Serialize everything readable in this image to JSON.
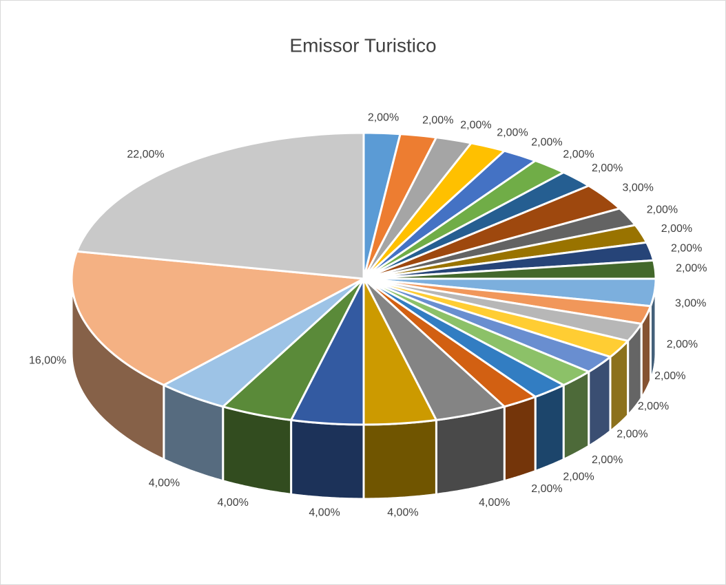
{
  "chart_data": {
    "type": "pie3d",
    "title": "Emissor Turistico",
    "values": [
      2,
      2,
      2,
      2,
      2,
      2,
      2,
      3,
      2,
      2,
      2,
      2,
      3,
      2,
      2,
      2,
      2,
      2,
      2,
      2,
      4,
      4,
      4,
      4,
      4,
      16,
      22
    ],
    "value_labels": [
      "2,00%",
      "2,00%",
      "2,00%",
      "2,00%",
      "2,00%",
      "2,00%",
      "2,00%",
      "3,00%",
      "2,00%",
      "2,00%",
      "2,00%",
      "2,00%",
      "3,00%",
      "2,00%",
      "2,00%",
      "2,00%",
      "2,00%",
      "2,00%",
      "2,00%",
      "2,00%",
      "4,00%",
      "4,00%",
      "4,00%",
      "4,00%",
      "4,00%",
      "16,00%",
      "22,00%"
    ],
    "colors": [
      "#5b9bd5",
      "#ed7d31",
      "#a5a5a5",
      "#ffc000",
      "#4472c4",
      "#70ad47",
      "#255e91",
      "#9e480e",
      "#636363",
      "#997300",
      "#264478",
      "#43682b",
      "#7cafdd",
      "#f1975a",
      "#b7b7b7",
      "#ffcd33",
      "#698ed0",
      "#8cc168",
      "#327dc2",
      "#d26012",
      "#848484",
      "#cc9a00",
      "#335aa1",
      "#5a8a39",
      "#9dc3e6",
      "#f4b183",
      "#c9c9c9"
    ]
  }
}
